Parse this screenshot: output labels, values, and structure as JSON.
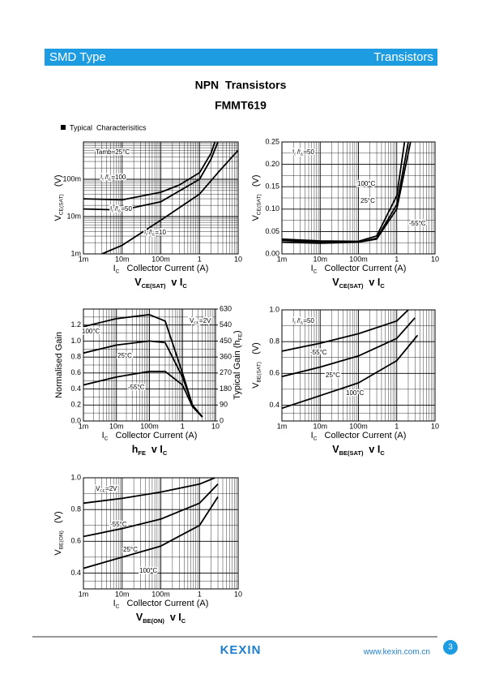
{
  "header": {
    "left": "SMD Type",
    "right": "Transistors"
  },
  "title": "NPN  Transistors",
  "part": "FMMT619",
  "section": "Typical  Characterisitics",
  "chart_data": [
    {
      "type": "line",
      "xlog": true,
      "ylog": true,
      "grid": true,
      "minor_grid": true,
      "xlim": [
        0.001,
        10
      ],
      "xticks": [
        {
          "value": 0.001,
          "label": "1m"
        },
        {
          "value": 0.01,
          "label": "10m"
        },
        {
          "value": 0.1,
          "label": "100m"
        },
        1,
        10
      ],
      "ylim": [
        0.001,
        1
      ],
      "yticks": [
        {
          "value": 0.001,
          "label": "1m"
        },
        {
          "value": 0.01,
          "label": "10m"
        },
        {
          "value": 0.1,
          "label": "100m"
        }
      ],
      "xlabel": [
        "I",
        "C",
        "   Collector Current (A)"
      ],
      "ylabel": [
        "V",
        "CE(SAT)",
        "   (V)"
      ],
      "caption": [
        "V",
        "CE(SAT)",
        "  v I",
        "C"
      ],
      "annotations": [
        [
          "Tamb=25°C"
        ]
      ],
      "series": [
        {
          "name": [
            "I",
            "C",
            "/I",
            "B",
            "=100"
          ],
          "color": "#000000",
          "x": [
            0.001,
            0.01,
            0.1,
            0.3,
            1,
            2,
            2.5
          ],
          "values": [
            0.03,
            0.028,
            0.045,
            0.07,
            0.15,
            0.5,
            1
          ]
        },
        {
          "name": [
            "I",
            "C",
            "/I",
            "B",
            "=50"
          ],
          "color": "#000000",
          "x": [
            0.001,
            0.01,
            0.1,
            1,
            2,
            3
          ],
          "values": [
            0.016,
            0.015,
            0.025,
            0.1,
            0.35,
            1
          ]
        },
        {
          "name": [
            "I",
            "C",
            "/I",
            "B",
            "=10"
          ],
          "color": "#000000",
          "x": [
            0.003,
            0.01,
            0.1,
            1,
            3,
            10
          ],
          "values": [
            0.001,
            0.0017,
            0.008,
            0.04,
            0.15,
            0.6
          ]
        }
      ]
    },
    {
      "type": "line",
      "xlog": true,
      "ylog": false,
      "grid": true,
      "minor_grid": true,
      "xlim": [
        0.001,
        10
      ],
      "xticks": [
        {
          "value": 0.001,
          "label": "1m"
        },
        {
          "value": 0.01,
          "label": "10m"
        },
        {
          "value": 0.1,
          "label": "100m"
        },
        1,
        10
      ],
      "ylim": [
        0,
        0.25
      ],
      "yticks": [
        {
          "value": 0,
          "label": "0.00"
        },
        0.05,
        {
          "value": 0.1,
          "label": "0.10"
        },
        0.15,
        {
          "value": 0.2,
          "label": "0.20"
        },
        0.25
      ],
      "xlabel": [
        "I",
        "C",
        "   Collector Current (A)"
      ],
      "ylabel": [
        "V",
        "CE(SAT)",
        "   (V)"
      ],
      "caption": [
        "V",
        "CE(SAT)",
        "  v I",
        "C"
      ],
      "annotations": [
        [
          "I",
          "C",
          "/I",
          "B",
          "=50"
        ]
      ],
      "series": [
        {
          "name": "100°C",
          "color": "#000000",
          "x": [
            0.001,
            0.01,
            0.1,
            0.3,
            1,
            1.6
          ],
          "values": [
            0.033,
            0.029,
            0.028,
            0.04,
            0.13,
            0.25
          ]
        },
        {
          "name": "25°C",
          "color": "#000000",
          "x": [
            0.001,
            0.01,
            0.1,
            0.3,
            1,
            2
          ],
          "values": [
            0.03,
            0.026,
            0.026,
            0.035,
            0.11,
            0.25
          ]
        },
        {
          "name": "-55°C",
          "color": "#000000",
          "x": [
            0.001,
            0.01,
            0.1,
            0.3,
            1,
            2.3
          ],
          "values": [
            0.026,
            0.024,
            0.026,
            0.033,
            0.1,
            0.25
          ]
        }
      ]
    },
    {
      "type": "line",
      "xlog": true,
      "ylog": false,
      "grid": true,
      "minor_grid": true,
      "xlim": [
        0.001,
        10
      ],
      "xticks": [
        {
          "value": 0.001,
          "label": "1m"
        },
        {
          "value": 0.01,
          "label": "10m"
        },
        {
          "value": 0.1,
          "label": "100m"
        },
        1,
        10
      ],
      "ylim": [
        0,
        1.4
      ],
      "yticks": [
        {
          "value": 0,
          "label": "0.0"
        },
        0.2,
        0.4,
        0.6,
        0.8,
        {
          "value": 1,
          "label": "1.0"
        },
        1.2
      ],
      "y2lim": [
        0,
        630
      ],
      "y2ticks": [
        0,
        90,
        180,
        270,
        360,
        450,
        540,
        630
      ],
      "xlabel": [
        "I",
        "C",
        "   Collector Current (A)"
      ],
      "ylabel": "Normalised Gain",
      "y2label": [
        "Typical Gain (h",
        "FE",
        ")"
      ],
      "caption": [
        "h",
        "FE",
        "  v I",
        "C"
      ],
      "annotations": [
        [
          "V",
          "CE",
          "=2V"
        ]
      ],
      "series": [
        {
          "name": "100°C",
          "color": "#000000",
          "x": [
            0.001,
            0.01,
            0.1,
            0.3,
            1,
            2,
            4
          ],
          "values": [
            1.18,
            1.28,
            1.33,
            1.25,
            0.6,
            0.2,
            0.05
          ]
        },
        {
          "name": "25°C",
          "color": "#000000",
          "x": [
            0.001,
            0.01,
            0.1,
            0.3,
            1,
            2,
            4
          ],
          "values": [
            0.85,
            0.95,
            1.0,
            0.98,
            0.55,
            0.2,
            0.05
          ]
        },
        {
          "name": "-55°C",
          "color": "#000000",
          "x": [
            0.001,
            0.01,
            0.1,
            0.3,
            1,
            2,
            4
          ],
          "values": [
            0.45,
            0.55,
            0.62,
            0.62,
            0.45,
            0.18,
            0.05
          ]
        }
      ]
    },
    {
      "type": "line",
      "xlog": true,
      "ylog": false,
      "grid": true,
      "minor_grid": true,
      "xlim": [
        0.001,
        10
      ],
      "xticks": [
        {
          "value": 0.001,
          "label": "1m"
        },
        {
          "value": 0.01,
          "label": "10m"
        },
        {
          "value": 0.1,
          "label": "100m"
        },
        1,
        10
      ],
      "ylim": [
        0.3,
        1.0
      ],
      "yticks": [
        0.4,
        0.6,
        0.8,
        {
          "value": 1,
          "label": "1.0"
        }
      ],
      "xlabel": [
        "I",
        "C",
        "   Collector Current (A)"
      ],
      "ylabel": [
        "V",
        "BE(SAT)",
        "   (V)"
      ],
      "caption": [
        "V",
        "BE(SAT)",
        "  v I",
        "C"
      ],
      "annotations": [
        [
          "I",
          "C",
          "/I",
          "B",
          "=50"
        ]
      ],
      "series": [
        {
          "name": "-55°C",
          "color": "#000000",
          "x": [
            0.001,
            0.01,
            0.1,
            1,
            2
          ],
          "values": [
            0.74,
            0.79,
            0.85,
            0.93,
            1.0
          ]
        },
        {
          "name": "25°C",
          "color": "#000000",
          "x": [
            0.001,
            0.01,
            0.1,
            1,
            3
          ],
          "values": [
            0.58,
            0.64,
            0.71,
            0.82,
            0.95
          ]
        },
        {
          "name": "100°C",
          "color": "#000000",
          "x": [
            0.001,
            0.01,
            0.1,
            1,
            3.5
          ],
          "values": [
            0.38,
            0.46,
            0.54,
            0.68,
            0.84
          ]
        }
      ]
    },
    {
      "type": "line",
      "xlog": true,
      "ylog": false,
      "grid": true,
      "minor_grid": true,
      "xlim": [
        0.001,
        10
      ],
      "xticks": [
        {
          "value": 0.001,
          "label": "1m"
        },
        {
          "value": 0.01,
          "label": "10m"
        },
        {
          "value": 0.1,
          "label": "100m"
        },
        1,
        10
      ],
      "ylim": [
        0.3,
        1.0
      ],
      "yticks": [
        0.4,
        0.6,
        0.8,
        {
          "value": 1,
          "label": "1.0"
        }
      ],
      "xlabel": [
        "I",
        "C",
        "   Collector Current (A)"
      ],
      "ylabel": [
        "V",
        "BE(ON)",
        "   (V)"
      ],
      "caption": [
        "V",
        "BE(ON)",
        "  v I",
        "C"
      ],
      "annotations": [
        [
          "V",
          "CE",
          "=2V"
        ]
      ],
      "series": [
        {
          "name": "-55°C",
          "color": "#000000",
          "x": [
            0.001,
            0.01,
            0.1,
            1,
            2.5
          ],
          "values": [
            0.84,
            0.87,
            0.91,
            0.96,
            1.0
          ]
        },
        {
          "name": "25°C",
          "color": "#000000",
          "x": [
            0.001,
            0.01,
            0.1,
            1,
            3
          ],
          "values": [
            0.63,
            0.68,
            0.74,
            0.84,
            0.96
          ]
        },
        {
          "name": "100°C",
          "color": "#000000",
          "x": [
            0.001,
            0.01,
            0.1,
            1,
            3
          ],
          "values": [
            0.43,
            0.5,
            0.57,
            0.7,
            0.88
          ]
        }
      ]
    }
  ],
  "footer": {
    "brand": "KEXIN",
    "url": "www.kexin.com.cn",
    "page": "3"
  }
}
